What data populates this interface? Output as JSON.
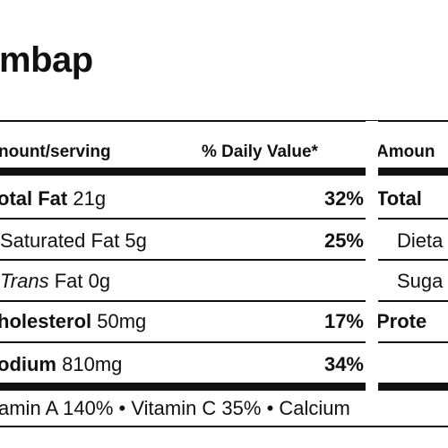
{
  "title": "mbap",
  "left_panel": {
    "header": {
      "amount": "nount/serving",
      "daily_value": "% Daily Value*"
    },
    "rows": [
      {
        "bold": "otal Fat",
        "amount": " 21g",
        "percent": "32%"
      },
      {
        "italic": "",
        "label": "Saturated Fat 5g",
        "percent": "25%"
      },
      {
        "italic": "Trans",
        "label": " Fat 0g",
        "percent": ""
      },
      {
        "bold": "holesterol",
        "amount": " 50mg",
        "percent": "17%"
      },
      {
        "bold": "odium",
        "amount": " 810mg",
        "percent": "34%"
      }
    ]
  },
  "right_panel": {
    "header": {
      "amount": "Amoun"
    },
    "rows": [
      {
        "bold": "Total",
        "label": ""
      },
      {
        "bold": "",
        "label": "Dieta"
      },
      {
        "bold": "",
        "label": "Suga"
      },
      {
        "bold": "Prote",
        "label": ""
      }
    ]
  },
  "footer": {
    "vitamins": "amin A 140% • Vitamin C 35% • Calcium"
  }
}
